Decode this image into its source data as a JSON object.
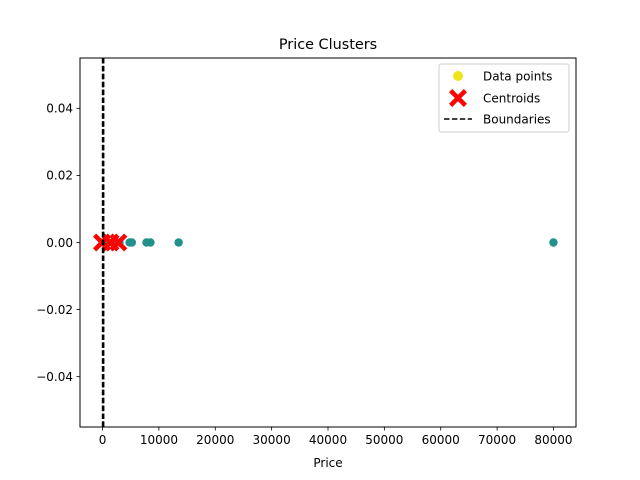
{
  "chart_data": {
    "type": "scatter",
    "title": "Price Clusters",
    "xlabel": "Price",
    "ylabel": "",
    "xlim": [
      -4000,
      84000
    ],
    "ylim": [
      -0.055,
      0.055
    ],
    "xticks": [
      0,
      10000,
      20000,
      30000,
      40000,
      50000,
      60000,
      70000,
      80000
    ],
    "xtick_labels": [
      "0",
      "10000",
      "20000",
      "30000",
      "40000",
      "50000",
      "60000",
      "70000",
      "80000"
    ],
    "yticks": [
      0.04,
      0.02,
      0.0,
      -0.02,
      -0.04
    ],
    "ytick_labels": [
      "0.04",
      "0.02",
      "0.00",
      "−0.02",
      "−0.04"
    ],
    "grid": false,
    "legend_position": "upper right",
    "series": [
      {
        "name": "Data points",
        "kind": "points",
        "marker": "circle",
        "legend_color": "#f0e31d",
        "color": "#21918c",
        "x": [
          4800,
          5200,
          7800,
          8500,
          13500,
          80000,
          0,
          1000,
          2000,
          3000
        ],
        "y": [
          0,
          0,
          0,
          0,
          0,
          0,
          0,
          0,
          0,
          0
        ]
      },
      {
        "name": "Centroids",
        "kind": "centroids",
        "marker": "X",
        "color": "#ff0000",
        "x": [
          -100,
          1400,
          2800
        ],
        "y": [
          0,
          0,
          0
        ]
      },
      {
        "name": "Boundaries",
        "kind": "vlines",
        "linestyle": "dashed",
        "color": "#000000",
        "x": [
          0,
          100,
          200
        ]
      }
    ]
  }
}
